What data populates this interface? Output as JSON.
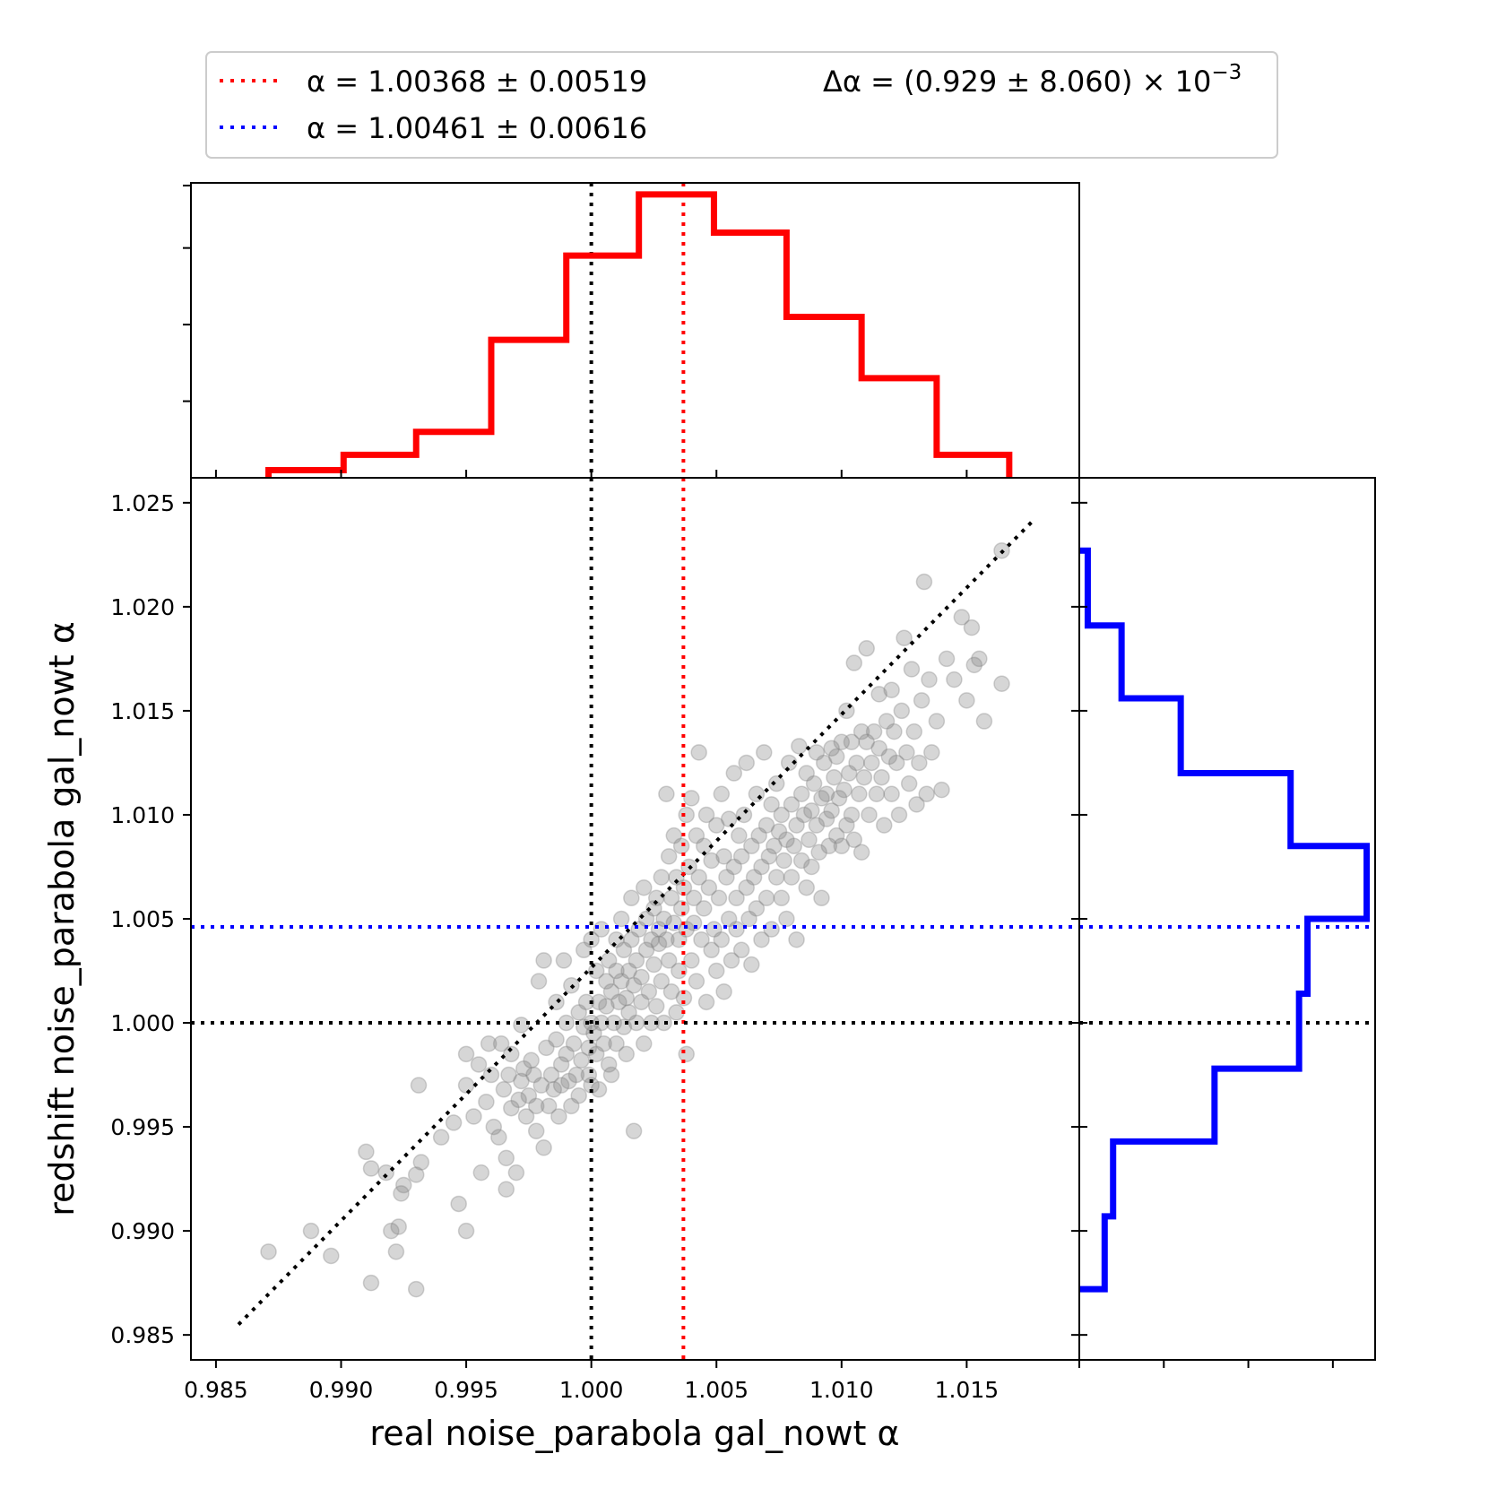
{
  "colors": {
    "red": "#ff0000",
    "blue": "#0000ff",
    "black": "#000000",
    "points": "#808080"
  },
  "legend": {
    "red_label": "α = 1.00368 ± 0.00519",
    "blue_label": "α = 1.00461 ± 0.00616",
    "delta_label": "Δα = (0.929 ± 8.060) × 10",
    "delta_exponent": "−3",
    "location": "top, above plots"
  },
  "chart_data": [
    {
      "type": "scatter",
      "xlabel": "real noise_parabola gal_nowt α",
      "ylabel": "redshift noise_parabola gal_nowt α",
      "xlim": [
        0.984,
        1.0195
      ],
      "ylim": [
        0.9838,
        1.0262
      ],
      "xticks": [
        "0.985",
        "0.990",
        "0.995",
        "1.000",
        "1.005",
        "1.010",
        "1.015"
      ],
      "yticks": [
        "0.985",
        "0.990",
        "0.995",
        "1.000",
        "1.005",
        "1.010",
        "1.015",
        "1.020",
        "1.025"
      ],
      "grid": false,
      "reference_lines": {
        "vertical_black": 1.0,
        "vertical_red": 1.00368,
        "horizontal_black": 1.0,
        "horizontal_blue": 1.00461,
        "diagonal_start": [
          0.9859,
          0.9855
        ],
        "diagonal_end": [
          1.0177,
          1.0242
        ]
      },
      "points": [
        [
          0.9871,
          0.989
        ],
        [
          0.9888,
          0.99
        ],
        [
          0.9896,
          0.9888
        ],
        [
          0.991,
          0.9938
        ],
        [
          0.9912,
          0.993
        ],
        [
          0.9912,
          0.9875
        ],
        [
          0.9918,
          0.9928
        ],
        [
          0.992,
          0.99
        ],
        [
          0.9922,
          0.989
        ],
        [
          0.9923,
          0.9902
        ],
        [
          0.9924,
          0.9918
        ],
        [
          0.9925,
          0.9922
        ],
        [
          0.993,
          0.9872
        ],
        [
          0.993,
          0.9927
        ],
        [
          0.9931,
          0.997
        ],
        [
          0.9932,
          0.9933
        ],
        [
          0.994,
          0.9945
        ],
        [
          0.9945,
          0.9952
        ],
        [
          0.9947,
          0.9913
        ],
        [
          0.995,
          0.9985
        ],
        [
          0.995,
          0.99
        ],
        [
          0.995,
          0.997
        ],
        [
          0.9953,
          0.9955
        ],
        [
          0.9955,
          0.998
        ],
        [
          0.9956,
          0.9928
        ],
        [
          0.9958,
          0.9962
        ],
        [
          0.9959,
          0.999
        ],
        [
          0.996,
          0.9975
        ],
        [
          0.9961,
          0.995
        ],
        [
          0.9963,
          0.9945
        ],
        [
          0.9964,
          0.999
        ],
        [
          0.9965,
          0.9968
        ],
        [
          0.9966,
          0.9935
        ],
        [
          0.9966,
          0.992
        ],
        [
          0.9967,
          0.9975
        ],
        [
          0.9968,
          0.9985
        ],
        [
          0.9968,
          0.9959
        ],
        [
          0.997,
          0.9928
        ],
        [
          0.9971,
          0.9963
        ],
        [
          0.9972,
          0.9972
        ],
        [
          0.9972,
          0.9999
        ],
        [
          0.9973,
          0.9978
        ],
        [
          0.9974,
          0.9955
        ],
        [
          0.9975,
          0.9965
        ],
        [
          0.9976,
          0.9982
        ],
        [
          0.9977,
          0.9975
        ],
        [
          0.9978,
          0.996
        ],
        [
          0.9978,
          0.9948
        ],
        [
          0.9979,
          1.002
        ],
        [
          0.998,
          0.997
        ],
        [
          0.9981,
          1.003
        ],
        [
          0.9981,
          0.994
        ],
        [
          0.9982,
          0.9988
        ],
        [
          0.9983,
          0.996
        ],
        [
          0.9984,
          0.9975
        ],
        [
          0.9985,
          0.9968
        ],
        [
          0.9986,
          1.001
        ],
        [
          0.9986,
          0.9992
        ],
        [
          0.9987,
          0.9955
        ],
        [
          0.9988,
          0.998
        ],
        [
          0.9988,
          0.997
        ],
        [
          0.9989,
          1.003
        ],
        [
          0.999,
          1.0
        ],
        [
          0.999,
          0.9985
        ],
        [
          0.9991,
          0.9972
        ],
        [
          0.9992,
          0.996
        ],
        [
          0.9992,
          1.0018
        ],
        [
          0.9993,
          0.999
        ],
        [
          0.9994,
          0.9975
        ],
        [
          0.9995,
          1.0005
        ],
        [
          0.9995,
          0.9965
        ],
        [
          0.9996,
          0.9982
        ],
        [
          0.9997,
          1.0035
        ],
        [
          0.9997,
          0.9998
        ],
        [
          0.9998,
          1.001
        ],
        [
          0.9999,
          0.9975
        ],
        [
          0.9999,
          0.9988
        ],
        [
          1.0,
          1.004
        ],
        [
          1.0,
          1.0
        ],
        [
          1.0,
          0.997
        ],
        [
          1.0001,
          0.9995
        ],
        [
          1.0002,
          1.0025
        ],
        [
          1.0002,
          0.9985
        ],
        [
          1.0003,
          1.001
        ],
        [
          1.0003,
          0.9968
        ],
        [
          1.0004,
          1.0
        ],
        [
          1.0004,
          1.0045
        ],
        [
          1.0005,
          0.999
        ],
        [
          1.0006,
          1.002
        ],
        [
          1.0006,
          1.0008
        ],
        [
          1.0007,
          0.998
        ],
        [
          1.0007,
          1.003
        ],
        [
          1.0008,
          1.0015
        ],
        [
          1.0008,
          0.9975
        ],
        [
          1.0009,
          1.0
        ],
        [
          1.001,
          1.004
        ],
        [
          1.001,
          1.0025
        ],
        [
          1.001,
          0.999
        ],
        [
          1.0011,
          1.001
        ],
        [
          1.0012,
          1.005
        ],
        [
          1.0012,
          1.002
        ],
        [
          1.0013,
          0.9998
        ],
        [
          1.0013,
          1.0035
        ],
        [
          1.0014,
          1.0012
        ],
        [
          1.0014,
          0.9985
        ],
        [
          1.0015,
          1.0025
        ],
        [
          1.0015,
          1.0005
        ],
        [
          1.0016,
          1.006
        ],
        [
          1.0016,
          1.004
        ],
        [
          1.0017,
          1.0018
        ],
        [
          1.0017,
          0.9948
        ],
        [
          1.0018,
          1.003
        ],
        [
          1.0018,
          1.0
        ],
        [
          1.0019,
          1.0045
        ],
        [
          1.002,
          1.0022
        ],
        [
          1.002,
          1.001
        ],
        [
          1.0021,
          1.0065
        ],
        [
          1.0021,
          0.999
        ],
        [
          1.0022,
          1.0035
        ],
        [
          1.0022,
          1.005
        ],
        [
          1.0023,
          1.0015
        ],
        [
          1.0024,
          1.004
        ],
        [
          1.0024,
          1.0
        ],
        [
          1.0025,
          1.0055
        ],
        [
          1.0025,
          1.0028
        ],
        [
          1.0026,
          1.006
        ],
        [
          1.0026,
          1.0008
        ],
        [
          1.0027,
          1.0045
        ],
        [
          1.0027,
          1.0038
        ],
        [
          1.0028,
          1.002
        ],
        [
          1.0028,
          1.007
        ],
        [
          1.0029,
          1.005
        ],
        [
          1.0029,
          1.0
        ],
        [
          1.003,
          1.004
        ],
        [
          1.003,
          1.011
        ],
        [
          1.0031,
          1.008
        ],
        [
          1.0031,
          1.003
        ],
        [
          1.0032,
          1.006
        ],
        [
          1.0032,
          1.0015
        ],
        [
          1.0033,
          1.0048
        ],
        [
          1.0033,
          1.009
        ],
        [
          1.0034,
          1.007
        ],
        [
          1.0034,
          1.0005
        ],
        [
          1.0035,
          1.004
        ],
        [
          1.0035,
          1.0025
        ],
        [
          1.0036,
          1.0085
        ],
        [
          1.0036,
          1.0055
        ],
        [
          1.0037,
          1.0065
        ],
        [
          1.0037,
          1.0012
        ],
        [
          1.0038,
          1.01
        ],
        [
          1.0038,
          1.0045
        ],
        [
          1.0038,
          0.9985
        ],
        [
          1.0039,
          1.0075
        ],
        [
          1.004,
          1.003
        ],
        [
          1.004,
          1.0108
        ],
        [
          1.0041,
          1.006
        ],
        [
          1.0041,
          1.0048
        ],
        [
          1.0042,
          1.009
        ],
        [
          1.0042,
          1.002
        ],
        [
          1.0043,
          1.013
        ],
        [
          1.0043,
          1.007
        ],
        [
          1.0044,
          1.004
        ],
        [
          1.0045,
          1.0085
        ],
        [
          1.0045,
          1.0055
        ],
        [
          1.0046,
          1.001
        ],
        [
          1.0046,
          1.01
        ],
        [
          1.0047,
          1.0065
        ],
        [
          1.0048,
          1.0035
        ],
        [
          1.0048,
          1.0078
        ],
        [
          1.0049,
          1.0045
        ],
        [
          1.005,
          1.0095
        ],
        [
          1.005,
          1.0025
        ],
        [
          1.0051,
          1.006
        ],
        [
          1.0052,
          1.011
        ],
        [
          1.0052,
          1.004
        ],
        [
          1.0053,
          1.008
        ],
        [
          1.0053,
          1.0015
        ],
        [
          1.0054,
          1.007
        ],
        [
          1.0055,
          1.005
        ],
        [
          1.0055,
          1.0098
        ],
        [
          1.0056,
          1.003
        ],
        [
          1.0057,
          1.0075
        ],
        [
          1.0057,
          1.012
        ],
        [
          1.0058,
          1.006
        ],
        [
          1.0058,
          1.0045
        ],
        [
          1.0059,
          1.009
        ],
        [
          1.006,
          1.0035
        ],
        [
          1.006,
          1.008
        ],
        [
          1.0061,
          1.01
        ],
        [
          1.0062,
          1.0065
        ],
        [
          1.0062,
          1.0125
        ],
        [
          1.0063,
          1.005
        ],
        [
          1.0064,
          1.0085
        ],
        [
          1.0064,
          1.0028
        ],
        [
          1.0065,
          1.007
        ],
        [
          1.0066,
          1.011
        ],
        [
          1.0066,
          1.0055
        ],
        [
          1.0067,
          1.009
        ],
        [
          1.0068,
          1.004
        ],
        [
          1.0068,
          1.0075
        ],
        [
          1.0069,
          1.013
        ],
        [
          1.007,
          1.0095
        ],
        [
          1.007,
          1.006
        ],
        [
          1.0071,
          1.008
        ],
        [
          1.0072,
          1.0105
        ],
        [
          1.0072,
          1.0045
        ],
        [
          1.0073,
          1.0085
        ],
        [
          1.0074,
          1.007
        ],
        [
          1.0074,
          1.0115
        ],
        [
          1.0075,
          1.0092
        ],
        [
          1.0076,
          1.006
        ],
        [
          1.0076,
          1.01
        ],
        [
          1.0077,
          1.0078
        ],
        [
          1.0078,
          1.005
        ],
        [
          1.0078,
          1.0088
        ],
        [
          1.0079,
          1.0125
        ],
        [
          1.008,
          1.007
        ],
        [
          1.008,
          1.0105
        ],
        [
          1.0081,
          1.0085
        ],
        [
          1.0082,
          1.004
        ],
        [
          1.0082,
          1.0095
        ],
        [
          1.0083,
          1.0133
        ],
        [
          1.0084,
          1.0078
        ],
        [
          1.0084,
          1.011
        ],
        [
          1.0085,
          1.01
        ],
        [
          1.0086,
          1.0065
        ],
        [
          1.0086,
          1.012
        ],
        [
          1.0087,
          1.0088
        ],
        [
          1.0088,
          1.0102
        ],
        [
          1.0088,
          1.0075
        ],
        [
          1.0089,
          1.0115
        ],
        [
          1.009,
          1.0095
        ],
        [
          1.009,
          1.013
        ],
        [
          1.0091,
          1.0082
        ],
        [
          1.0092,
          1.0108
        ],
        [
          1.0092,
          1.006
        ],
        [
          1.0093,
          1.0125
        ],
        [
          1.0094,
          1.0098
        ],
        [
          1.0094,
          1.011
        ],
        [
          1.0095,
          1.0085
        ],
        [
          1.0096,
          1.0132
        ],
        [
          1.0096,
          1.0102
        ],
        [
          1.0097,
          1.0118
        ],
        [
          1.0098,
          1.009
        ],
        [
          1.0098,
          1.0128
        ],
        [
          1.0099,
          1.0108
        ],
        [
          1.01,
          1.0085
        ],
        [
          1.01,
          1.0135
        ],
        [
          1.0101,
          1.0112
        ],
        [
          1.0102,
          1.0095
        ],
        [
          1.0102,
          1.015
        ],
        [
          1.0103,
          1.012
        ],
        [
          1.0104,
          1.01
        ],
        [
          1.0104,
          1.0135
        ],
        [
          1.0105,
          1.0173
        ],
        [
          1.0105,
          1.0088
        ],
        [
          1.0106,
          1.0125
        ],
        [
          1.0107,
          1.011
        ],
        [
          1.0108,
          1.014
        ],
        [
          1.0108,
          1.0082
        ],
        [
          1.0109,
          1.0118
        ],
        [
          1.011,
          1.018
        ],
        [
          1.011,
          1.0135
        ],
        [
          1.0111,
          1.01
        ],
        [
          1.0112,
          1.0125
        ],
        [
          1.0113,
          1.014
        ],
        [
          1.0114,
          1.011
        ],
        [
          1.0115,
          1.0158
        ],
        [
          1.0115,
          1.0132
        ],
        [
          1.0116,
          1.0118
        ],
        [
          1.0117,
          1.0095
        ],
        [
          1.0118,
          1.0145
        ],
        [
          1.0119,
          1.0128
        ],
        [
          1.012,
          1.016
        ],
        [
          1.012,
          1.011
        ],
        [
          1.0121,
          1.014
        ],
        [
          1.0122,
          1.0125
        ],
        [
          1.0123,
          1.01
        ],
        [
          1.0124,
          1.015
        ],
        [
          1.0125,
          1.0185
        ],
        [
          1.0126,
          1.013
        ],
        [
          1.0127,
          1.0115
        ],
        [
          1.0128,
          1.017
        ],
        [
          1.0129,
          1.014
        ],
        [
          1.013,
          1.0105
        ],
        [
          1.0131,
          1.0125
        ],
        [
          1.0132,
          1.0155
        ],
        [
          1.0133,
          1.0212
        ],
        [
          1.0134,
          1.011
        ],
        [
          1.0135,
          1.0165
        ],
        [
          1.0136,
          1.013
        ],
        [
          1.0138,
          1.0145
        ],
        [
          1.014,
          1.0112
        ],
        [
          1.0142,
          1.0175
        ],
        [
          1.0145,
          1.0165
        ],
        [
          1.0148,
          1.0195
        ],
        [
          1.015,
          1.0155
        ],
        [
          1.0152,
          1.019
        ],
        [
          1.0153,
          1.0172
        ],
        [
          1.0155,
          1.0175
        ],
        [
          1.0157,
          1.0145
        ],
        [
          1.0164,
          1.0163
        ],
        [
          1.0164,
          1.0227
        ]
      ]
    },
    {
      "type": "histogram",
      "orientation": "vertical",
      "series_color": "red",
      "bin_edges": [
        0.9871,
        0.9901,
        0.993,
        0.996,
        0.999,
        1.0019,
        1.0049,
        1.0078,
        1.0108,
        1.0138,
        1.0167
      ],
      "counts": [
        1,
        3,
        6,
        18,
        29,
        37,
        32,
        21,
        13,
        3
      ]
    },
    {
      "type": "histogram",
      "orientation": "horizontal",
      "series_color": "blue",
      "bin_edges": [
        0.9872,
        0.9907,
        0.9943,
        0.9978,
        1.0014,
        1.005,
        1.0085,
        1.012,
        1.0156,
        1.0191,
        1.0227
      ],
      "counts": [
        3,
        4,
        16,
        26,
        27,
        34,
        25,
        12,
        5,
        1
      ]
    }
  ]
}
